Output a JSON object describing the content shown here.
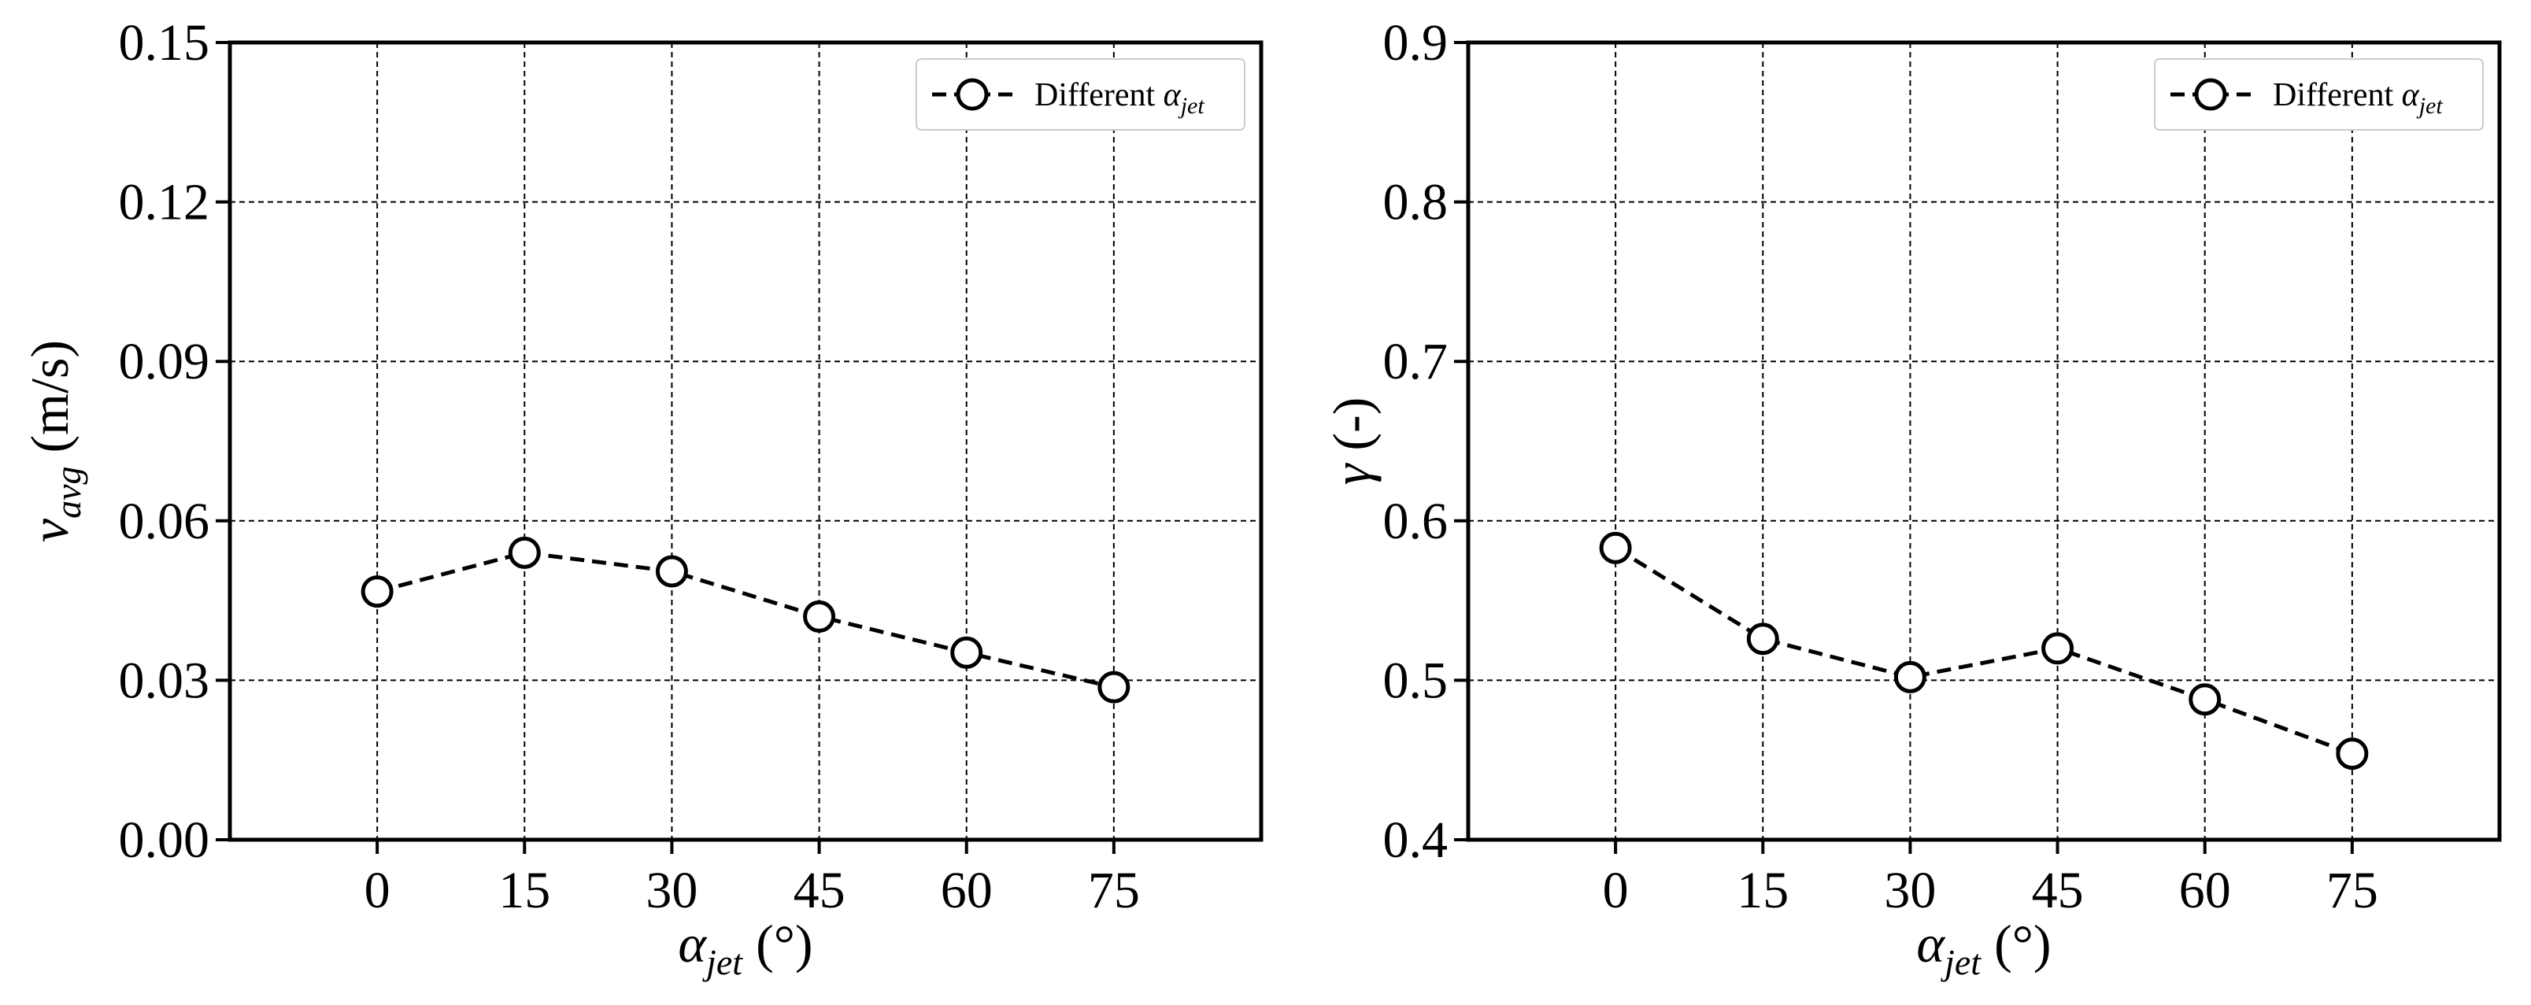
{
  "chart_data": [
    {
      "type": "line",
      "x": [
        0,
        15,
        30,
        45,
        60,
        75
      ],
      "xlim": [
        -15,
        90
      ],
      "ylim": [
        0,
        0.15
      ],
      "xticks": [
        "0",
        "15",
        "30",
        "45",
        "60",
        "75"
      ],
      "yticks": [
        "0.00",
        "0.03",
        "0.06",
        "0.09",
        "0.12",
        "0.15"
      ],
      "ytick_values": [
        0,
        0.03,
        0.06,
        0.09,
        0.12,
        0.15
      ],
      "xlabel": {
        "symbol": "α",
        "sub": "jet",
        "unit": " (°)"
      },
      "ylabel": {
        "symbol": "v",
        "sub": "avg",
        "unit": " (m/s)"
      },
      "grid": true,
      "legend_position": "top-right",
      "series": [
        {
          "name": {
            "text": "Different ",
            "symbol": "α",
            "sub": "jet"
          },
          "values": [
            0.0467,
            0.054,
            0.0505,
            0.042,
            0.0352,
            0.0287
          ],
          "color": "#000000",
          "line_style": "dashed",
          "marker": "open-circle"
        }
      ]
    },
    {
      "type": "line",
      "x": [
        0,
        15,
        30,
        45,
        60,
        75
      ],
      "xlim": [
        -15,
        90
      ],
      "ylim": [
        0.4,
        0.9
      ],
      "xticks": [
        "0",
        "15",
        "30",
        "45",
        "60",
        "75"
      ],
      "yticks": [
        "0.4",
        "0.5",
        "0.6",
        "0.7",
        "0.8",
        "0.9"
      ],
      "ytick_values": [
        0.4,
        0.5,
        0.6,
        0.7,
        0.8,
        0.9
      ],
      "xlabel": {
        "symbol": "α",
        "sub": "jet",
        "unit": " (°)"
      },
      "ylabel": {
        "symbol": "γ",
        "sub": "",
        "unit": " (-)"
      },
      "grid": true,
      "legend_position": "top-right",
      "series": [
        {
          "name": {
            "text": "Different ",
            "symbol": "α",
            "sub": "jet"
          },
          "values": [
            0.583,
            0.526,
            0.502,
            0.52,
            0.488,
            0.454
          ],
          "color": "#000000",
          "line_style": "dashed",
          "marker": "open-circle"
        }
      ]
    }
  ]
}
